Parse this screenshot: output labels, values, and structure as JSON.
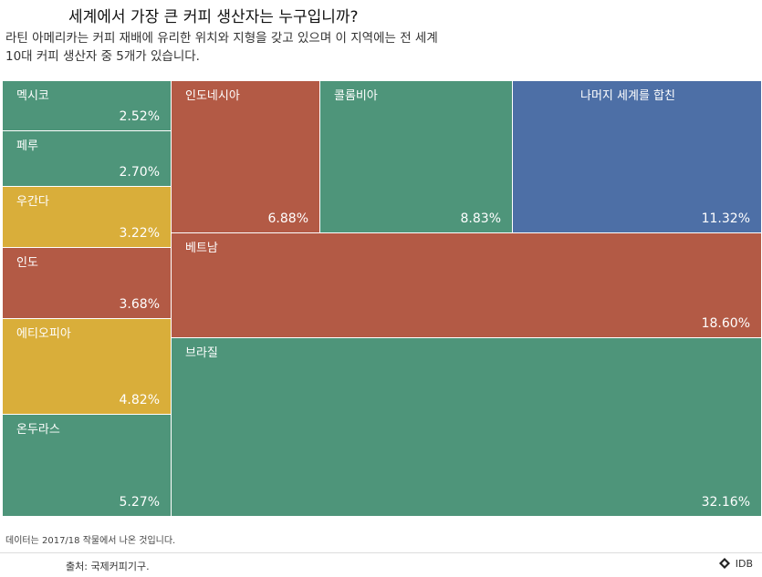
{
  "title": "세계에서 가장 큰 커피 생산자는 누구입니까?",
  "subtitle": "라틴 아메리카는 커피 재배에 유리한 위치와 지형을 갖고 있으며 이 지역에는 전 세계 10대 커피 생산자 중 5개가 있습니다.",
  "note": "데이터는 2017/18 작물에서 나온 것입니다.",
  "source": "출처: 국제커피기구.",
  "logo_text": "IDB",
  "colors": {
    "green": "#4e957a",
    "red": "#b35a45",
    "yellow": "#d9ae3a",
    "blue": "#4d6fa6"
  },
  "chart_data": {
    "type": "treemap",
    "unit": "%",
    "items": [
      {
        "label": "브라질",
        "value": 32.16,
        "value_text": "32.16%",
        "color": "green"
      },
      {
        "label": "베트남",
        "value": 18.6,
        "value_text": "18.60%",
        "color": "red"
      },
      {
        "label": "나머지 세계를 합친",
        "value": 11.32,
        "value_text": "11.32%",
        "color": "blue"
      },
      {
        "label": "콜롬비아",
        "value": 8.83,
        "value_text": "8.83%",
        "color": "green"
      },
      {
        "label": "인도네시아",
        "value": 6.88,
        "value_text": "6.88%",
        "color": "red"
      },
      {
        "label": "온두라스",
        "value": 5.27,
        "value_text": "5.27%",
        "color": "green"
      },
      {
        "label": "에티오피아",
        "value": 4.82,
        "value_text": "4.82%",
        "color": "yellow"
      },
      {
        "label": "인도",
        "value": 3.68,
        "value_text": "3.68%",
        "color": "red"
      },
      {
        "label": "우간다",
        "value": 3.22,
        "value_text": "3.22%",
        "color": "yellow"
      },
      {
        "label": "페루",
        "value": 2.7,
        "value_text": "2.70%",
        "color": "green"
      },
      {
        "label": "멕시코",
        "value": 2.52,
        "value_text": "2.52%",
        "color": "green"
      }
    ]
  }
}
